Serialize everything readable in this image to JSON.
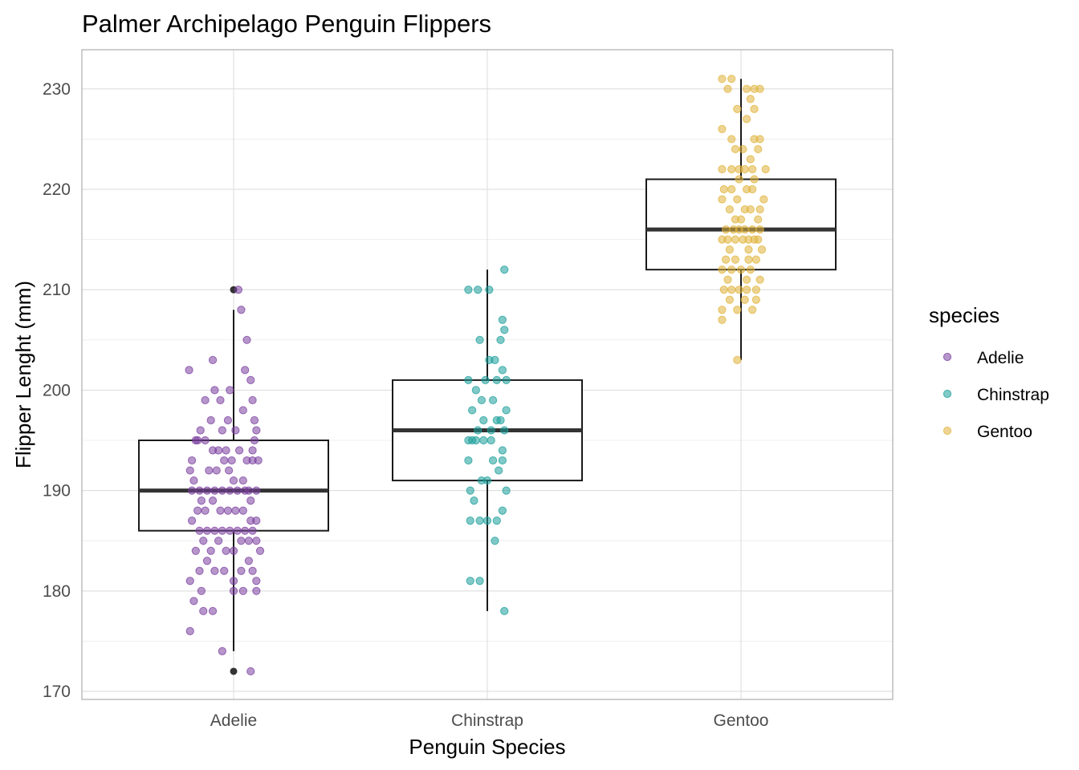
{
  "chart_data": {
    "type": "boxplot_jitter",
    "title": "Palmer Archipelago Penguin Flippers",
    "xlabel": "Penguin Species",
    "ylabel": "Flipper Lenght (mm)",
    "categories": [
      "Adelie",
      "Chinstrap",
      "Gentoo"
    ],
    "ylim": [
      169.2,
      233.9
    ],
    "yticks": [
      170,
      180,
      190,
      200,
      210,
      220,
      230
    ],
    "yminor": [
      175,
      185,
      195,
      205,
      215,
      225
    ],
    "grid": true,
    "legend": {
      "title": "species",
      "position": "right",
      "entries": [
        {
          "label": "Adelie",
          "color": "#7b3fa0"
        },
        {
          "label": "Chinstrap",
          "color": "#1a9e9a"
        },
        {
          "label": "Gentoo",
          "color": "#e0b33a"
        }
      ]
    },
    "boxes": [
      {
        "category": "Adelie",
        "q1": 186,
        "median": 190,
        "q3": 195,
        "whisker_low": 174,
        "whisker_high": 208,
        "outliers": [
          172,
          210
        ]
      },
      {
        "category": "Chinstrap",
        "q1": 191,
        "median": 196,
        "q3": 201,
        "whisker_low": 178,
        "whisker_high": 212,
        "outliers": []
      },
      {
        "category": "Gentoo",
        "q1": 212,
        "median": 216,
        "q3": 221,
        "whisker_low": 203,
        "whisker_high": 231,
        "outliers": []
      }
    ],
    "points": {
      "Adelie": [
        [
          -0.47,
          202
        ],
        [
          -0.4,
          195
        ],
        [
          -0.44,
          193
        ],
        [
          -0.35,
          196
        ],
        [
          -0.3,
          199
        ],
        [
          -0.22,
          203
        ],
        [
          -0.2,
          200
        ],
        [
          -0.12,
          196
        ],
        [
          -0.04,
          200
        ],
        [
          0.05,
          210
        ],
        [
          0.08,
          208
        ],
        [
          0.12,
          202
        ],
        [
          0.14,
          205
        ],
        [
          0.18,
          201
        ],
        [
          0.2,
          199
        ],
        [
          0.24,
          196
        ],
        [
          0.22,
          195
        ],
        [
          0.26,
          193
        ],
        [
          0.2,
          193
        ],
        [
          0.16,
          190
        ],
        [
          0.24,
          190
        ],
        [
          0.1,
          191
        ],
        [
          0.0,
          191
        ],
        [
          -0.05,
          192
        ],
        [
          -0.1,
          193
        ],
        [
          -0.16,
          194
        ],
        [
          -0.22,
          194
        ],
        [
          -0.3,
          195
        ],
        [
          -0.38,
          195
        ],
        [
          -0.42,
          191
        ],
        [
          -0.46,
          192
        ],
        [
          -0.36,
          190
        ],
        [
          -0.28,
          190
        ],
        [
          -0.2,
          190
        ],
        [
          -0.12,
          190
        ],
        [
          -0.04,
          190
        ],
        [
          0.04,
          190
        ],
        [
          0.12,
          190
        ],
        [
          0.18,
          189
        ],
        [
          0.24,
          187
        ],
        [
          0.18,
          187
        ],
        [
          0.1,
          188
        ],
        [
          0.02,
          188
        ],
        [
          -0.06,
          188
        ],
        [
          -0.14,
          188
        ],
        [
          -0.22,
          189
        ],
        [
          -0.3,
          188
        ],
        [
          -0.38,
          188
        ],
        [
          -0.44,
          190
        ],
        [
          -0.44,
          187
        ],
        [
          -0.36,
          186
        ],
        [
          -0.28,
          186
        ],
        [
          -0.2,
          186
        ],
        [
          -0.12,
          186
        ],
        [
          -0.04,
          186
        ],
        [
          0.04,
          186
        ],
        [
          0.12,
          186
        ],
        [
          0.2,
          186
        ],
        [
          0.24,
          185
        ],
        [
          0.16,
          185
        ],
        [
          0.08,
          185
        ],
        [
          0.0,
          184
        ],
        [
          -0.08,
          184
        ],
        [
          -0.16,
          185
        ],
        [
          -0.24,
          184
        ],
        [
          -0.32,
          185
        ],
        [
          -0.4,
          184
        ],
        [
          -0.36,
          182
        ],
        [
          -0.28,
          183
        ],
        [
          -0.2,
          182
        ],
        [
          -0.1,
          182
        ],
        [
          0.0,
          181
        ],
        [
          0.08,
          182
        ],
        [
          0.16,
          183
        ],
        [
          0.2,
          182
        ],
        [
          0.24,
          181
        ],
        [
          -0.46,
          181
        ],
        [
          -0.42,
          179
        ],
        [
          -0.32,
          178
        ],
        [
          -0.22,
          178
        ],
        [
          -0.34,
          180
        ],
        [
          0.0,
          180
        ],
        [
          0.1,
          180
        ],
        [
          0.24,
          180
        ],
        [
          -0.46,
          176
        ],
        [
          -0.12,
          174
        ],
        [
          0.18,
          172
        ],
        [
          -0.24,
          197
        ],
        [
          -0.06,
          197
        ],
        [
          0.02,
          196
        ],
        [
          0.1,
          198
        ],
        [
          0.14,
          193
        ],
        [
          -0.02,
          193
        ],
        [
          -0.08,
          194
        ],
        [
          -0.18,
          192
        ],
        [
          -0.26,
          192
        ],
        [
          0.06,
          194
        ],
        [
          -0.14,
          199
        ],
        [
          0.2,
          194
        ],
        [
          0.22,
          197
        ],
        [
          -0.34,
          189
        ],
        [
          0.28,
          184
        ]
      ],
      "Chinstrap": [
        [
          -0.2,
          210
        ],
        [
          -0.1,
          210
        ],
        [
          0.02,
          210
        ],
        [
          0.18,
          212
        ],
        [
          0.16,
          207
        ],
        [
          0.18,
          206
        ],
        [
          0.14,
          205
        ],
        [
          -0.08,
          205
        ],
        [
          0.02,
          203
        ],
        [
          0.08,
          203
        ],
        [
          0.16,
          202
        ],
        [
          0.1,
          201
        ],
        [
          0.2,
          201
        ],
        [
          -0.2,
          201
        ],
        [
          -0.12,
          200
        ],
        [
          -0.06,
          199
        ],
        [
          0.06,
          199
        ],
        [
          0.1,
          197
        ],
        [
          0.2,
          198
        ],
        [
          0.18,
          196
        ],
        [
          -0.04,
          197
        ],
        [
          -0.1,
          196
        ],
        [
          0.04,
          196
        ],
        [
          -0.16,
          195
        ],
        [
          -0.2,
          195
        ],
        [
          -0.12,
          195
        ],
        [
          -0.04,
          195
        ],
        [
          0.04,
          195
        ],
        [
          0.16,
          194
        ],
        [
          0.16,
          193
        ],
        [
          0.06,
          193
        ],
        [
          -0.2,
          193
        ],
        [
          -0.06,
          191
        ],
        [
          0.0,
          191
        ],
        [
          -0.18,
          190
        ],
        [
          0.2,
          190
        ],
        [
          -0.14,
          189
        ],
        [
          0.16,
          188
        ],
        [
          -0.08,
          187
        ],
        [
          0.0,
          187
        ],
        [
          -0.18,
          187
        ],
        [
          0.1,
          187
        ],
        [
          0.08,
          185
        ],
        [
          -0.08,
          181
        ],
        [
          -0.18,
          181
        ],
        [
          0.18,
          178
        ],
        [
          0.14,
          197
        ],
        [
          -0.02,
          201
        ],
        [
          0.12,
          192
        ],
        [
          -0.16,
          198
        ]
      ],
      "Gentoo": [
        [
          -0.2,
          231
        ],
        [
          -0.1,
          231
        ],
        [
          -0.14,
          230
        ],
        [
          -0.04,
          228
        ],
        [
          0.06,
          230
        ],
        [
          0.1,
          229
        ],
        [
          0.14,
          230
        ],
        [
          0.2,
          230
        ],
        [
          0.14,
          228
        ],
        [
          0.06,
          227
        ],
        [
          -0.2,
          226
        ],
        [
          -0.1,
          225
        ],
        [
          0.14,
          225
        ],
        [
          0.2,
          225
        ],
        [
          0.18,
          224
        ],
        [
          0.1,
          223
        ],
        [
          -0.06,
          224
        ],
        [
          0.02,
          224
        ],
        [
          -0.2,
          222
        ],
        [
          -0.1,
          222
        ],
        [
          -0.02,
          222
        ],
        [
          0.12,
          222
        ],
        [
          0.26,
          222
        ],
        [
          0.24,
          219
        ],
        [
          0.2,
          218
        ],
        [
          0.12,
          220
        ],
        [
          0.06,
          220
        ],
        [
          -0.02,
          221
        ],
        [
          -0.1,
          220
        ],
        [
          -0.18,
          220
        ],
        [
          -0.2,
          219
        ],
        [
          -0.12,
          218
        ],
        [
          -0.04,
          219
        ],
        [
          0.04,
          218
        ],
        [
          0.1,
          218
        ],
        [
          0.18,
          217
        ],
        [
          0.2,
          216
        ],
        [
          0.12,
          216
        ],
        [
          0.04,
          216
        ],
        [
          -0.02,
          216
        ],
        [
          -0.08,
          216
        ],
        [
          -0.16,
          216
        ],
        [
          -0.2,
          215
        ],
        [
          -0.14,
          215
        ],
        [
          -0.06,
          215
        ],
        [
          0.02,
          215
        ],
        [
          0.08,
          215
        ],
        [
          0.14,
          215
        ],
        [
          0.22,
          214
        ],
        [
          0.16,
          213
        ],
        [
          0.08,
          213
        ],
        [
          -0.06,
          213
        ],
        [
          -0.16,
          213
        ],
        [
          -0.2,
          212
        ],
        [
          -0.1,
          212
        ],
        [
          0.0,
          212
        ],
        [
          0.1,
          212
        ],
        [
          0.2,
          211
        ],
        [
          0.16,
          210
        ],
        [
          0.06,
          210
        ],
        [
          -0.02,
          210
        ],
        [
          -0.1,
          210
        ],
        [
          -0.18,
          210
        ],
        [
          -0.2,
          208
        ],
        [
          -0.12,
          209
        ],
        [
          -0.04,
          208
        ],
        [
          0.04,
          209
        ],
        [
          0.12,
          208
        ],
        [
          0.16,
          209
        ],
        [
          -0.2,
          207
        ],
        [
          -0.04,
          203
        ],
        [
          0.0,
          217
        ],
        [
          -0.06,
          217
        ],
        [
          0.18,
          215
        ],
        [
          0.06,
          211
        ],
        [
          -0.14,
          211
        ],
        [
          0.14,
          221
        ],
        [
          0.04,
          222
        ],
        [
          -0.12,
          214
        ],
        [
          0.08,
          214
        ]
      ]
    }
  }
}
